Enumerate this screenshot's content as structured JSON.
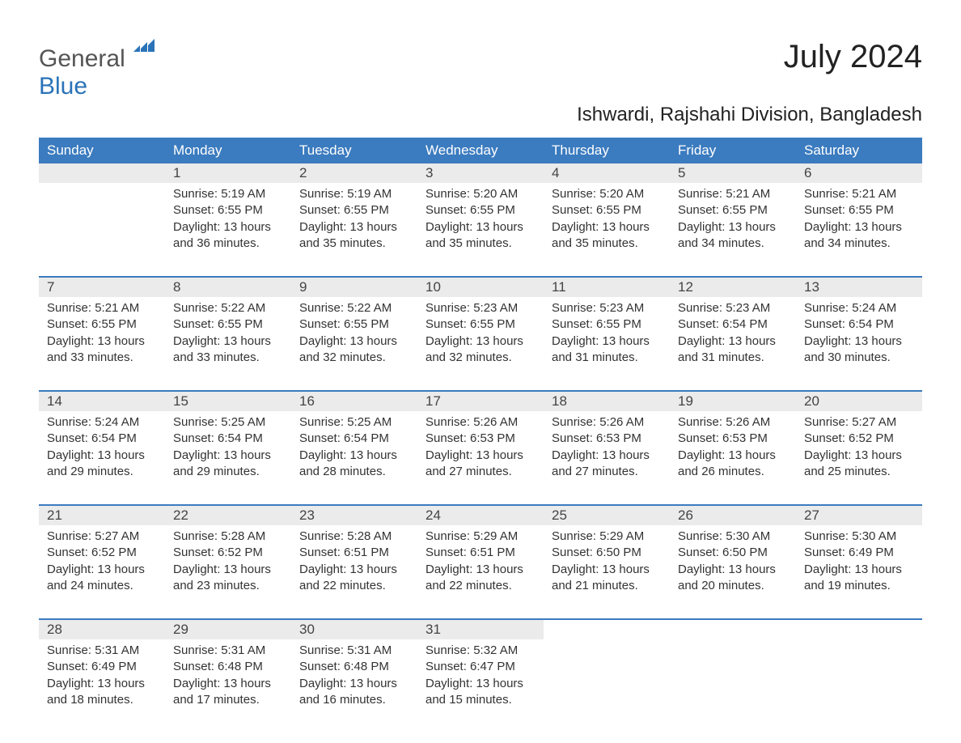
{
  "logo": {
    "part1": "General",
    "part2": "Blue"
  },
  "title": "July 2024",
  "subtitle": "Ishwardi, Rajshahi Division, Bangladesh",
  "colors": {
    "header_bg": "#3b7bbf",
    "header_text": "#ffffff",
    "daynum_bg": "#ebebeb",
    "border": "#3b7bbf",
    "text": "#333333",
    "logo_gray": "#555555",
    "logo_blue": "#2a73b8",
    "background": "#ffffff"
  },
  "fonts": {
    "title_size_pt": 30,
    "subtitle_size_pt": 18,
    "header_size_pt": 13,
    "body_size_pt": 11
  },
  "weekdays": [
    "Sunday",
    "Monday",
    "Tuesday",
    "Wednesday",
    "Thursday",
    "Friday",
    "Saturday"
  ],
  "weeks": [
    [
      null,
      {
        "day": "1",
        "sunrise": "Sunrise: 5:19 AM",
        "sunset": "Sunset: 6:55 PM",
        "daylight1": "Daylight: 13 hours",
        "daylight2": "and 36 minutes."
      },
      {
        "day": "2",
        "sunrise": "Sunrise: 5:19 AM",
        "sunset": "Sunset: 6:55 PM",
        "daylight1": "Daylight: 13 hours",
        "daylight2": "and 35 minutes."
      },
      {
        "day": "3",
        "sunrise": "Sunrise: 5:20 AM",
        "sunset": "Sunset: 6:55 PM",
        "daylight1": "Daylight: 13 hours",
        "daylight2": "and 35 minutes."
      },
      {
        "day": "4",
        "sunrise": "Sunrise: 5:20 AM",
        "sunset": "Sunset: 6:55 PM",
        "daylight1": "Daylight: 13 hours",
        "daylight2": "and 35 minutes."
      },
      {
        "day": "5",
        "sunrise": "Sunrise: 5:21 AM",
        "sunset": "Sunset: 6:55 PM",
        "daylight1": "Daylight: 13 hours",
        "daylight2": "and 34 minutes."
      },
      {
        "day": "6",
        "sunrise": "Sunrise: 5:21 AM",
        "sunset": "Sunset: 6:55 PM",
        "daylight1": "Daylight: 13 hours",
        "daylight2": "and 34 minutes."
      }
    ],
    [
      {
        "day": "7",
        "sunrise": "Sunrise: 5:21 AM",
        "sunset": "Sunset: 6:55 PM",
        "daylight1": "Daylight: 13 hours",
        "daylight2": "and 33 minutes."
      },
      {
        "day": "8",
        "sunrise": "Sunrise: 5:22 AM",
        "sunset": "Sunset: 6:55 PM",
        "daylight1": "Daylight: 13 hours",
        "daylight2": "and 33 minutes."
      },
      {
        "day": "9",
        "sunrise": "Sunrise: 5:22 AM",
        "sunset": "Sunset: 6:55 PM",
        "daylight1": "Daylight: 13 hours",
        "daylight2": "and 32 minutes."
      },
      {
        "day": "10",
        "sunrise": "Sunrise: 5:23 AM",
        "sunset": "Sunset: 6:55 PM",
        "daylight1": "Daylight: 13 hours",
        "daylight2": "and 32 minutes."
      },
      {
        "day": "11",
        "sunrise": "Sunrise: 5:23 AM",
        "sunset": "Sunset: 6:55 PM",
        "daylight1": "Daylight: 13 hours",
        "daylight2": "and 31 minutes."
      },
      {
        "day": "12",
        "sunrise": "Sunrise: 5:23 AM",
        "sunset": "Sunset: 6:54 PM",
        "daylight1": "Daylight: 13 hours",
        "daylight2": "and 31 minutes."
      },
      {
        "day": "13",
        "sunrise": "Sunrise: 5:24 AM",
        "sunset": "Sunset: 6:54 PM",
        "daylight1": "Daylight: 13 hours",
        "daylight2": "and 30 minutes."
      }
    ],
    [
      {
        "day": "14",
        "sunrise": "Sunrise: 5:24 AM",
        "sunset": "Sunset: 6:54 PM",
        "daylight1": "Daylight: 13 hours",
        "daylight2": "and 29 minutes."
      },
      {
        "day": "15",
        "sunrise": "Sunrise: 5:25 AM",
        "sunset": "Sunset: 6:54 PM",
        "daylight1": "Daylight: 13 hours",
        "daylight2": "and 29 minutes."
      },
      {
        "day": "16",
        "sunrise": "Sunrise: 5:25 AM",
        "sunset": "Sunset: 6:54 PM",
        "daylight1": "Daylight: 13 hours",
        "daylight2": "and 28 minutes."
      },
      {
        "day": "17",
        "sunrise": "Sunrise: 5:26 AM",
        "sunset": "Sunset: 6:53 PM",
        "daylight1": "Daylight: 13 hours",
        "daylight2": "and 27 minutes."
      },
      {
        "day": "18",
        "sunrise": "Sunrise: 5:26 AM",
        "sunset": "Sunset: 6:53 PM",
        "daylight1": "Daylight: 13 hours",
        "daylight2": "and 27 minutes."
      },
      {
        "day": "19",
        "sunrise": "Sunrise: 5:26 AM",
        "sunset": "Sunset: 6:53 PM",
        "daylight1": "Daylight: 13 hours",
        "daylight2": "and 26 minutes."
      },
      {
        "day": "20",
        "sunrise": "Sunrise: 5:27 AM",
        "sunset": "Sunset: 6:52 PM",
        "daylight1": "Daylight: 13 hours",
        "daylight2": "and 25 minutes."
      }
    ],
    [
      {
        "day": "21",
        "sunrise": "Sunrise: 5:27 AM",
        "sunset": "Sunset: 6:52 PM",
        "daylight1": "Daylight: 13 hours",
        "daylight2": "and 24 minutes."
      },
      {
        "day": "22",
        "sunrise": "Sunrise: 5:28 AM",
        "sunset": "Sunset: 6:52 PM",
        "daylight1": "Daylight: 13 hours",
        "daylight2": "and 23 minutes."
      },
      {
        "day": "23",
        "sunrise": "Sunrise: 5:28 AM",
        "sunset": "Sunset: 6:51 PM",
        "daylight1": "Daylight: 13 hours",
        "daylight2": "and 22 minutes."
      },
      {
        "day": "24",
        "sunrise": "Sunrise: 5:29 AM",
        "sunset": "Sunset: 6:51 PM",
        "daylight1": "Daylight: 13 hours",
        "daylight2": "and 22 minutes."
      },
      {
        "day": "25",
        "sunrise": "Sunrise: 5:29 AM",
        "sunset": "Sunset: 6:50 PM",
        "daylight1": "Daylight: 13 hours",
        "daylight2": "and 21 minutes."
      },
      {
        "day": "26",
        "sunrise": "Sunrise: 5:30 AM",
        "sunset": "Sunset: 6:50 PM",
        "daylight1": "Daylight: 13 hours",
        "daylight2": "and 20 minutes."
      },
      {
        "day": "27",
        "sunrise": "Sunrise: 5:30 AM",
        "sunset": "Sunset: 6:49 PM",
        "daylight1": "Daylight: 13 hours",
        "daylight2": "and 19 minutes."
      }
    ],
    [
      {
        "day": "28",
        "sunrise": "Sunrise: 5:31 AM",
        "sunset": "Sunset: 6:49 PM",
        "daylight1": "Daylight: 13 hours",
        "daylight2": "and 18 minutes."
      },
      {
        "day": "29",
        "sunrise": "Sunrise: 5:31 AM",
        "sunset": "Sunset: 6:48 PM",
        "daylight1": "Daylight: 13 hours",
        "daylight2": "and 17 minutes."
      },
      {
        "day": "30",
        "sunrise": "Sunrise: 5:31 AM",
        "sunset": "Sunset: 6:48 PM",
        "daylight1": "Daylight: 13 hours",
        "daylight2": "and 16 minutes."
      },
      {
        "day": "31",
        "sunrise": "Sunrise: 5:32 AM",
        "sunset": "Sunset: 6:47 PM",
        "daylight1": "Daylight: 13 hours",
        "daylight2": "and 15 minutes."
      },
      null,
      null,
      null
    ]
  ]
}
